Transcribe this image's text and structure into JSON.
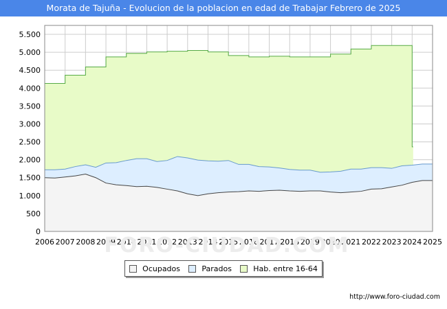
{
  "title": "Morata de Tajuña - Evolucion de la poblacion en edad de Trabajar Febrero de 2025",
  "source": "http://www.foro-ciudad.com",
  "watermark": "FORO-CIUDAD.COM",
  "colors": {
    "title_bg": "#4a86e8",
    "hab_fill": "#e8fbc8",
    "hab_line": "#55aa44",
    "parados_fill": "#ddeeff",
    "parados_line": "#6699cc",
    "ocupados_fill": "#f4f4f4",
    "ocupados_line": "#444444",
    "grid": "#cccccc"
  },
  "chart_data": {
    "type": "area",
    "title": "Morata de Tajuña - Evolucion de la poblacion en edad de Trabajar Febrero de 2025",
    "xlabel": "",
    "ylabel": "",
    "xlim": [
      2006,
      2025
    ],
    "ylim": [
      0,
      5750
    ],
    "yticks": [
      0,
      500,
      1000,
      1500,
      2000,
      2500,
      3000,
      3500,
      4000,
      4500,
      5000,
      5500
    ],
    "ytick_labels": [
      "0",
      "500",
      "1.000",
      "1.500",
      "2.000",
      "2.500",
      "3.000",
      "3.500",
      "4.000",
      "4.500",
      "5.000",
      "5.500"
    ],
    "xticks": [
      2006,
      2007,
      2008,
      2009,
      2010,
      2011,
      2012,
      2013,
      2014,
      2015,
      2016,
      2017,
      2018,
      2019,
      2020,
      2021,
      2022,
      2023,
      2024,
      2025
    ],
    "xtick_labels": [
      "2006",
      "2007",
      "2008",
      "2009",
      "2010",
      "2011",
      "2012",
      "2013",
      "2014",
      "2015",
      "2016",
      "2017",
      "2018",
      "2019",
      "2020",
      "2021",
      "2022",
      "2023",
      "2024",
      "2025"
    ],
    "grid": true,
    "legend": [
      "Ocupados",
      "Parados",
      "Hab. entre 16-64"
    ],
    "series": [
      {
        "name": "Hab. entre 16-64",
        "step": true,
        "x": [
          2006,
          2007,
          2008,
          2009,
          2010,
          2011,
          2012,
          2013,
          2014,
          2015,
          2016,
          2017,
          2018,
          2019,
          2020,
          2021,
          2022,
          2023,
          2024
        ],
        "values": [
          4130,
          4360,
          4590,
          4870,
          4970,
          5010,
          5030,
          5050,
          5010,
          4910,
          4870,
          4890,
          4870,
          4870,
          4950,
          5090,
          5190,
          5190,
          2360
        ]
      },
      {
        "name": "Parados",
        "x": [
          2006,
          2006.5,
          2007,
          2007.5,
          2008,
          2008.5,
          2009,
          2009.5,
          2010,
          2010.5,
          2011,
          2011.5,
          2012,
          2012.5,
          2013,
          2013.5,
          2014,
          2014.5,
          2015,
          2015.5,
          2016,
          2016.5,
          2017,
          2017.5,
          2018,
          2018.5,
          2019,
          2019.5,
          2020,
          2020.5,
          2021,
          2021.5,
          2022,
          2022.5,
          2023,
          2023.5,
          2024,
          2024.5,
          2025
        ],
        "values": [
          220,
          230,
          220,
          260,
          260,
          290,
          560,
          620,
          700,
          780,
          770,
          720,
          800,
          960,
          1000,
          990,
          920,
          880,
          880,
          760,
          740,
          690,
          660,
          620,
          600,
          590,
          580,
          520,
          560,
          600,
          640,
          620,
          600,
          590,
          520,
          540,
          480,
          460,
          460
        ]
      },
      {
        "name": "Ocupados",
        "x": [
          2006,
          2006.5,
          2007,
          2007.5,
          2008,
          2008.5,
          2009,
          2009.5,
          2010,
          2010.5,
          2011,
          2011.5,
          2012,
          2012.5,
          2013,
          2013.5,
          2014,
          2014.5,
          2015,
          2015.5,
          2016,
          2016.5,
          2017,
          2017.5,
          2018,
          2018.5,
          2019,
          2019.5,
          2020,
          2020.5,
          2021,
          2021.5,
          2022,
          2022.5,
          2023,
          2023.5,
          2024,
          2024.5,
          2025
        ],
        "values": [
          1500,
          1490,
          1520,
          1550,
          1600,
          1500,
          1350,
          1300,
          1280,
          1250,
          1260,
          1230,
          1180,
          1130,
          1050,
          1000,
          1050,
          1080,
          1100,
          1110,
          1130,
          1120,
          1140,
          1150,
          1130,
          1120,
          1130,
          1130,
          1100,
          1080,
          1100,
          1120,
          1180,
          1190,
          1240,
          1290,
          1370,
          1420,
          1420
        ]
      }
    ]
  }
}
